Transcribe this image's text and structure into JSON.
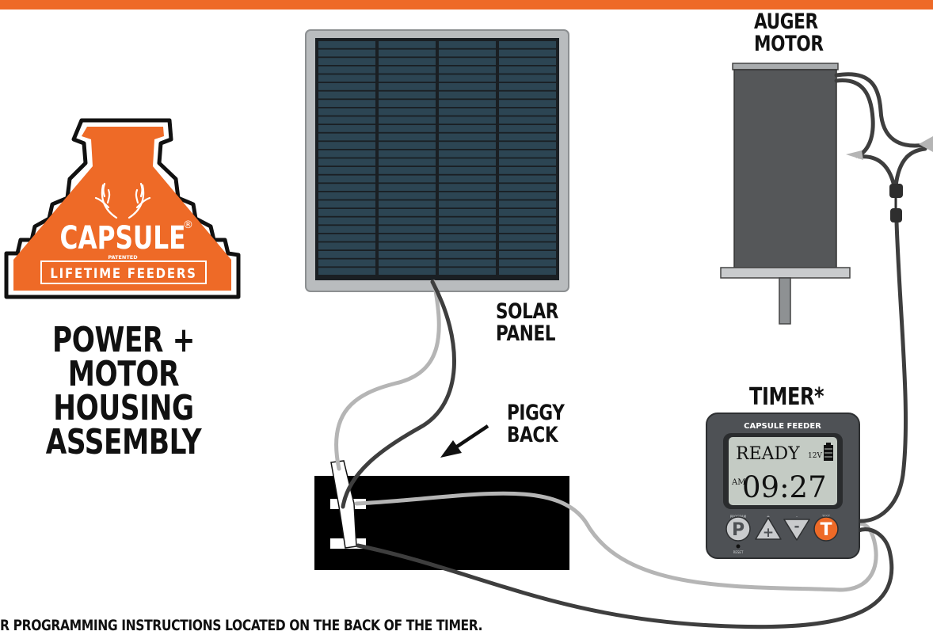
{
  "colors": {
    "brand_orange": "#ee6a27",
    "panel_frame": "#b9bcbe",
    "cell_blue": "#2c4553",
    "motor_gray": "#555759",
    "battery": "#000000",
    "wire_light": "#b5b5b5",
    "wire_dark": "#3e3e3e",
    "timer_body": "#4e5155",
    "lcd": "#c4cbc4"
  },
  "logo": {
    "brand": "CAPSULE",
    "registered": "®",
    "patented": "PATENTED",
    "tagline": "LIFETIME FEEDERS",
    "icon": "antlers-icon"
  },
  "title": {
    "line1": "POWER +",
    "line2": "MOTOR HOUSING",
    "line3": "ASSEMBLY"
  },
  "labels": {
    "auger_line1": "AUGER",
    "auger_line2": "MOTOR",
    "solar_line1": "SOLAR",
    "solar_line2": "PANEL",
    "piggy_line1": "PIGGY",
    "piggy_line2": "BACK",
    "timer": "TIMER*"
  },
  "timer": {
    "brand": "CAPSULE FEEDER",
    "status": "READY",
    "voltage": "12V",
    "ampm": "AM",
    "time": "09:27",
    "btn_p": "P",
    "btn_plus": "+",
    "btn_minus": "-",
    "btn_t": "T",
    "cap_program": "PROGRAM",
    "cap_plus": "+",
    "cap_minus": "-",
    "cap_test": "TEST",
    "cap_reset": "RESET"
  },
  "footnote": "R PROGRAMMING INSTRUCTIONS LOCATED ON THE BACK OF THE TIMER."
}
